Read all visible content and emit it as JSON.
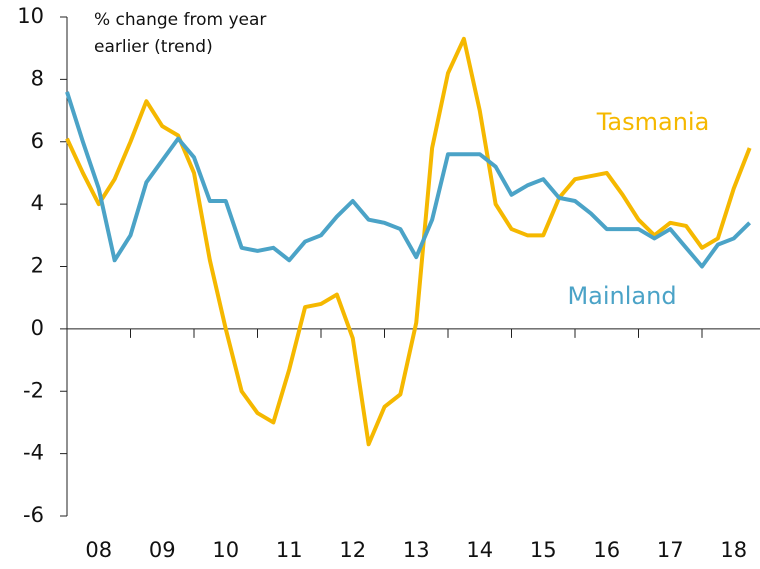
{
  "chart_data": {
    "type": "line",
    "ylabel": [
      "% change from year",
      "earlier (trend)"
    ],
    "categories": [
      null,
      null,
      "08",
      null,
      null,
      null,
      "09",
      null,
      null,
      null,
      "10",
      null,
      null,
      null,
      "11",
      null,
      null,
      null,
      "12",
      null,
      null,
      null,
      "13",
      null,
      null,
      null,
      "14",
      null,
      null,
      null,
      "15",
      null,
      null,
      null,
      "16",
      null,
      null,
      null,
      "17",
      null,
      null,
      null,
      "18",
      null
    ],
    "series": [
      {
        "name": "Tasmania",
        "color": "#f5b800",
        "values": [
          6.1,
          5.0,
          4.0,
          4.8,
          6.0,
          7.3,
          6.5,
          6.2,
          5.0,
          2.2,
          0.0,
          -2.0,
          -2.7,
          -3.0,
          -1.3,
          0.7,
          0.8,
          1.1,
          -0.3,
          -3.7,
          -2.5,
          -2.1,
          0.2,
          5.8,
          8.2,
          9.3,
          7.0,
          4.0,
          3.2,
          3.0,
          3.0,
          4.2,
          4.8,
          4.9,
          5.0,
          4.3,
          3.5,
          3.0,
          3.4,
          3.3,
          2.6,
          2.9,
          4.5,
          5.8
        ]
      },
      {
        "name": "Mainland",
        "color": "#4ba3c7",
        "values": [
          7.6,
          6.0,
          4.5,
          2.2,
          3.0,
          4.7,
          5.4,
          6.1,
          5.5,
          4.1,
          4.1,
          2.6,
          2.5,
          2.6,
          2.2,
          2.8,
          3.0,
          3.6,
          4.1,
          3.5,
          3.4,
          3.2,
          2.3,
          3.5,
          5.6,
          5.6,
          5.6,
          5.2,
          4.3,
          4.6,
          4.8,
          4.2,
          4.1,
          3.7,
          3.2,
          3.2,
          3.2,
          2.9,
          3.2,
          2.6,
          2.0,
          2.7,
          2.9,
          3.4
        ]
      }
    ],
    "ylim": [
      -6,
      10
    ],
    "yticks": [
      -6,
      -4,
      -2,
      0,
      2,
      4,
      6,
      8,
      10
    ]
  }
}
